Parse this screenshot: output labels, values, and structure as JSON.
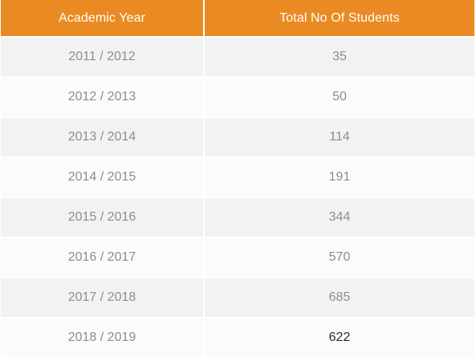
{
  "table": {
    "headers": [
      "Academic Year",
      "Total No Of Students"
    ],
    "rows": [
      {
        "year": "2011 / 2012",
        "total": "35"
      },
      {
        "year": "2012 / 2013",
        "total": "50"
      },
      {
        "year": "2013 / 2014",
        "total": "114"
      },
      {
        "year": "2014 / 2015",
        "total": "191"
      },
      {
        "year": "2015 / 2016",
        "total": "344"
      },
      {
        "year": "2016 / 2017",
        "total": "570"
      },
      {
        "year": "2017 / 2018",
        "total": "685"
      },
      {
        "year": "2018 / 2019",
        "total": "622"
      }
    ]
  },
  "colors": {
    "header_bg": "#ea8a22",
    "header_text": "#ffffff",
    "row_odd": "#f2f2f2",
    "row_even": "#fbfbfb",
    "cell_text": "#8d8d8d"
  }
}
